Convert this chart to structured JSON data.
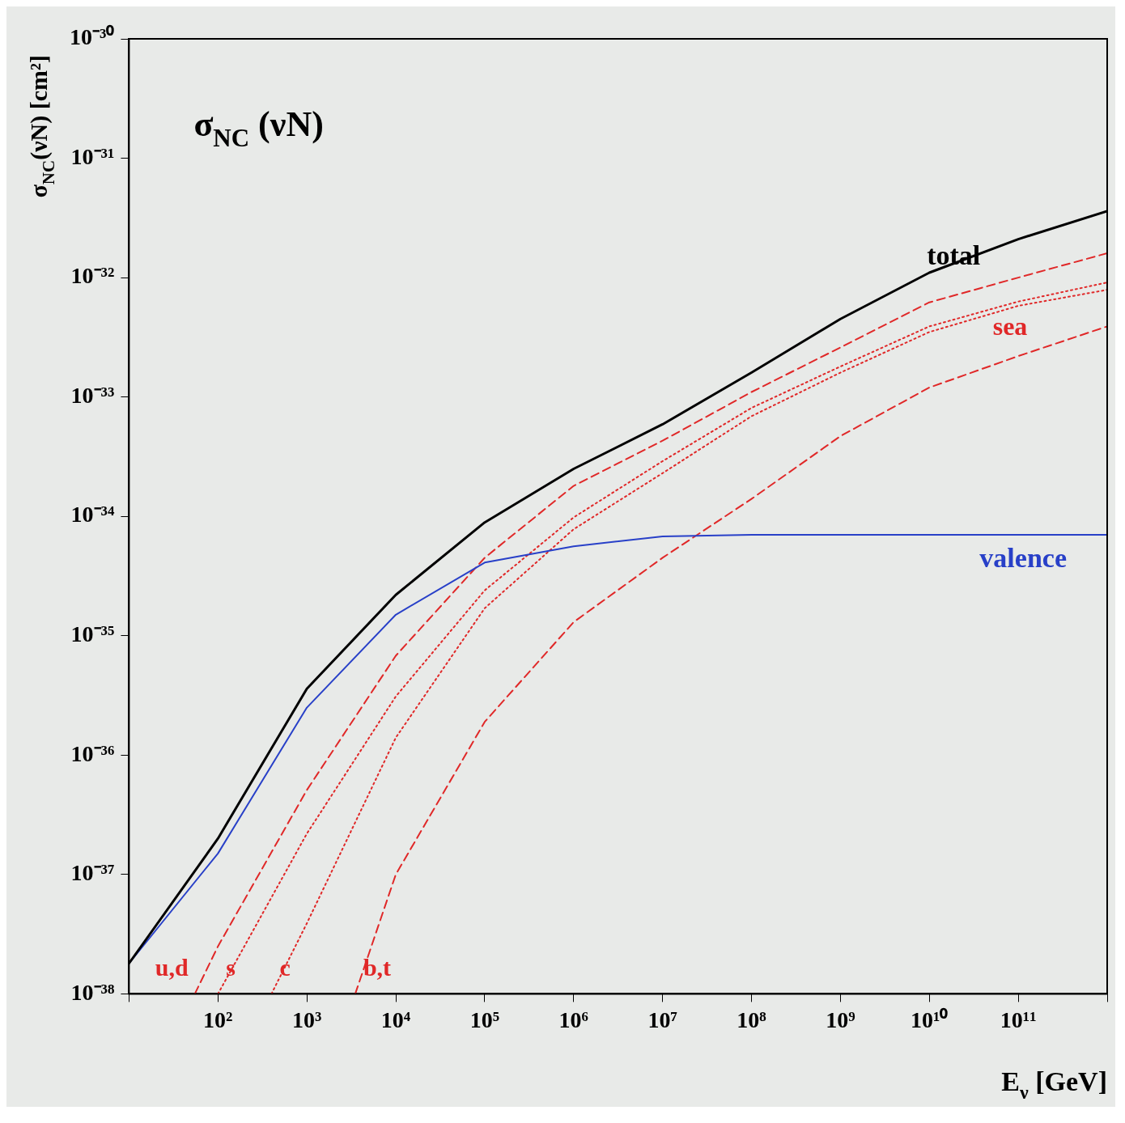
{
  "chart_data": {
    "type": "line",
    "xlabel": "E$_{ν}$ [GeV]",
    "ylabel": "σ$_{NC}$(νN) [cm²]",
    "log": "xy",
    "grid": false,
    "legend": false,
    "marker": "none",
    "xlim": [
      10,
      1000000000000.0
    ],
    "ylim": [
      1e-38,
      1e-30
    ],
    "xticks": [
      {
        "value": 10,
        "label": null
      },
      {
        "value": 100,
        "label": "10²"
      },
      {
        "value": 1000,
        "label": "10³"
      },
      {
        "value": 10000,
        "label": "10⁴"
      },
      {
        "value": 100000,
        "label": "10⁵"
      },
      {
        "value": 1000000,
        "label": "10⁶"
      },
      {
        "value": 10000000,
        "label": "10⁷"
      },
      {
        "value": 100000000,
        "label": "10⁸"
      },
      {
        "value": 1000000000,
        "label": "10⁹"
      },
      {
        "value": 10000000000,
        "label": "10¹⁰"
      },
      {
        "value": 100000000000,
        "label": "10¹¹"
      },
      {
        "value": 1000000000000,
        "label": null
      }
    ],
    "yticks": [
      {
        "value": 1e-38,
        "label": "10⁻³⁸"
      },
      {
        "value": 1e-37,
        "label": "10⁻³⁷"
      },
      {
        "value": 1e-36,
        "label": "10⁻³⁶"
      },
      {
        "value": 1e-35,
        "label": "10⁻³⁵"
      },
      {
        "value": 1e-34,
        "label": "10⁻³⁴"
      },
      {
        "value": 1e-33,
        "label": "10⁻³³"
      },
      {
        "value": 1e-32,
        "label": "10⁻³²"
      },
      {
        "value": 1e-31,
        "label": "10⁻³¹"
      },
      {
        "value": 1e-30,
        "label": "10⁻³⁰"
      }
    ],
    "annotations": [
      "σ$_{NC}$ (νN)",
      "sea"
    ],
    "series": [
      {
        "name": "total",
        "color": "#000000",
        "line_style": "solid",
        "x": [
          10,
          100,
          1000.0,
          10000.0,
          100000.0,
          1000000.0,
          10000000.0,
          100000000.0,
          1000000000.0,
          10000000000.0,
          100000000000.0,
          1000000000000.0
        ],
        "values": [
          1.8e-38,
          2e-37,
          3.6e-36,
          2.2e-35,
          8.9e-35,
          2.5e-34,
          5.9e-34,
          1.6e-33,
          4.5e-33,
          1.1e-32,
          2.1e-32,
          3.6e-32
        ]
      },
      {
        "name": "valence",
        "color": "#2840c8",
        "line_style": "solid",
        "x": [
          10,
          100,
          1000.0,
          10000.0,
          100000.0,
          1000000.0,
          10000000.0,
          100000000.0,
          1000000000.0,
          10000000000.0,
          100000000000.0,
          1000000000000.0
        ],
        "values": [
          1.8e-38,
          1.5e-37,
          2.5e-36,
          1.5e-35,
          4.1e-35,
          5.6e-35,
          6.8e-35,
          7e-35,
          7e-35,
          7e-35,
          7e-35,
          7e-35
        ]
      },
      {
        "name": "u,d",
        "color": "#e02828",
        "line_style": "dashed",
        "x": [
          55,
          100,
          1000.0,
          10000.0,
          100000.0,
          1000000.0,
          10000000.0,
          100000000.0,
          1000000000.0,
          10000000000.0,
          100000000000.0,
          1000000000000.0
        ],
        "values": [
          1e-38,
          2.5e-38,
          5.1e-37,
          6.8e-36,
          4.5e-35,
          1.8e-34,
          4.3e-34,
          1.1e-33,
          2.6e-33,
          6.2e-33,
          1e-32,
          1.6e-32
        ]
      },
      {
        "name": "s",
        "color": "#e02828",
        "line_style": "dotted",
        "x": [
          100,
          1000.0,
          10000.0,
          100000.0,
          1000000.0,
          10000000.0,
          100000000.0,
          1000000000.0,
          10000000000.0,
          100000000000.0,
          1000000000000.0
        ],
        "values": [
          1e-38,
          2.2e-37,
          3.1e-36,
          2.4e-35,
          9.8e-35,
          2.9e-34,
          8.1e-34,
          1.8e-33,
          3.9e-33,
          6.3e-33,
          9.1e-33
        ]
      },
      {
        "name": "c",
        "color": "#e02828",
        "line_style": "dotted",
        "x": [
          400,
          1000.0,
          10000.0,
          100000.0,
          1000000.0,
          10000000.0,
          100000000.0,
          1000000000.0,
          10000000000.0,
          100000000000.0,
          1000000000000.0
        ],
        "values": [
          1e-38,
          3.9e-38,
          1.4e-36,
          1.7e-35,
          7.8e-35,
          2.3e-34,
          6.9e-34,
          1.6e-33,
          3.5e-33,
          5.8e-33,
          7.9e-33
        ]
      },
      {
        "name": "b,t",
        "color": "#e02828",
        "line_style": "dashed",
        "x": [
          3500,
          10000.0,
          100000.0,
          1000000.0,
          10000000.0,
          100000000.0,
          1000000000.0,
          10000000000.0,
          100000000000.0,
          1000000000000.0
        ],
        "values": [
          1e-38,
          1e-37,
          1.9e-36,
          1.3e-35,
          4.5e-35,
          1.4e-34,
          4.7e-34,
          1.2e-33,
          2.2e-33,
          3.9e-33
        ]
      }
    ]
  }
}
